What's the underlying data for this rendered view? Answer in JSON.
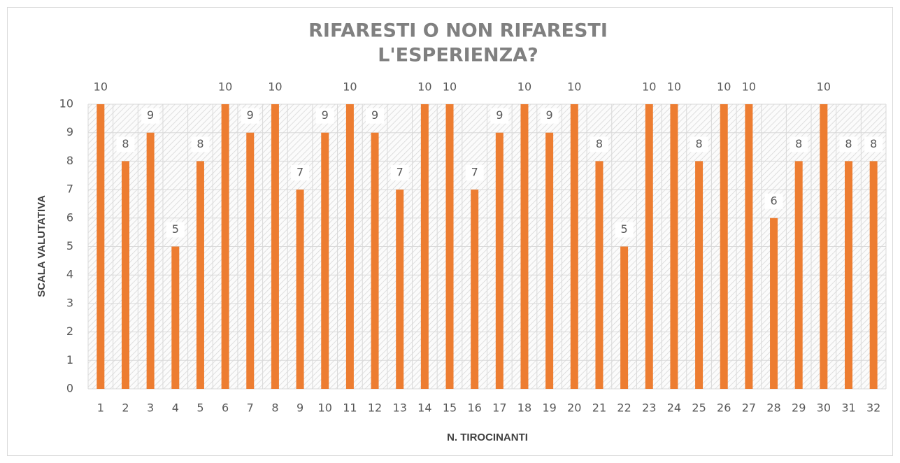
{
  "chart_data": {
    "type": "bar",
    "title": [
      "RIFARESTI O NON RIFARESTI",
      "L'ESPERIENZA?"
    ],
    "x_label": "N. TIROCINANTI",
    "y_label": "SCALA VALUTATIVA",
    "categories": [
      "1",
      "2",
      "3",
      "4",
      "5",
      "6",
      "7",
      "8",
      "9",
      "10",
      "11",
      "12",
      "13",
      "14",
      "15",
      "16",
      "17",
      "18",
      "19",
      "20",
      "21",
      "22",
      "23",
      "24",
      "25",
      "26",
      "27",
      "28",
      "29",
      "30",
      "31",
      "32"
    ],
    "values": [
      10,
      8,
      9,
      5,
      8,
      10,
      9,
      10,
      7,
      9,
      10,
      9,
      7,
      10,
      10,
      7,
      9,
      10,
      9,
      10,
      8,
      5,
      10,
      10,
      8,
      10,
      10,
      6,
      8,
      10,
      8,
      8
    ],
    "color": "#ed7d31",
    "ylim": [
      0,
      10
    ],
    "yticks": [
      0,
      1,
      2,
      3,
      4,
      5,
      6,
      7,
      8,
      9,
      10
    ],
    "grid": true
  }
}
